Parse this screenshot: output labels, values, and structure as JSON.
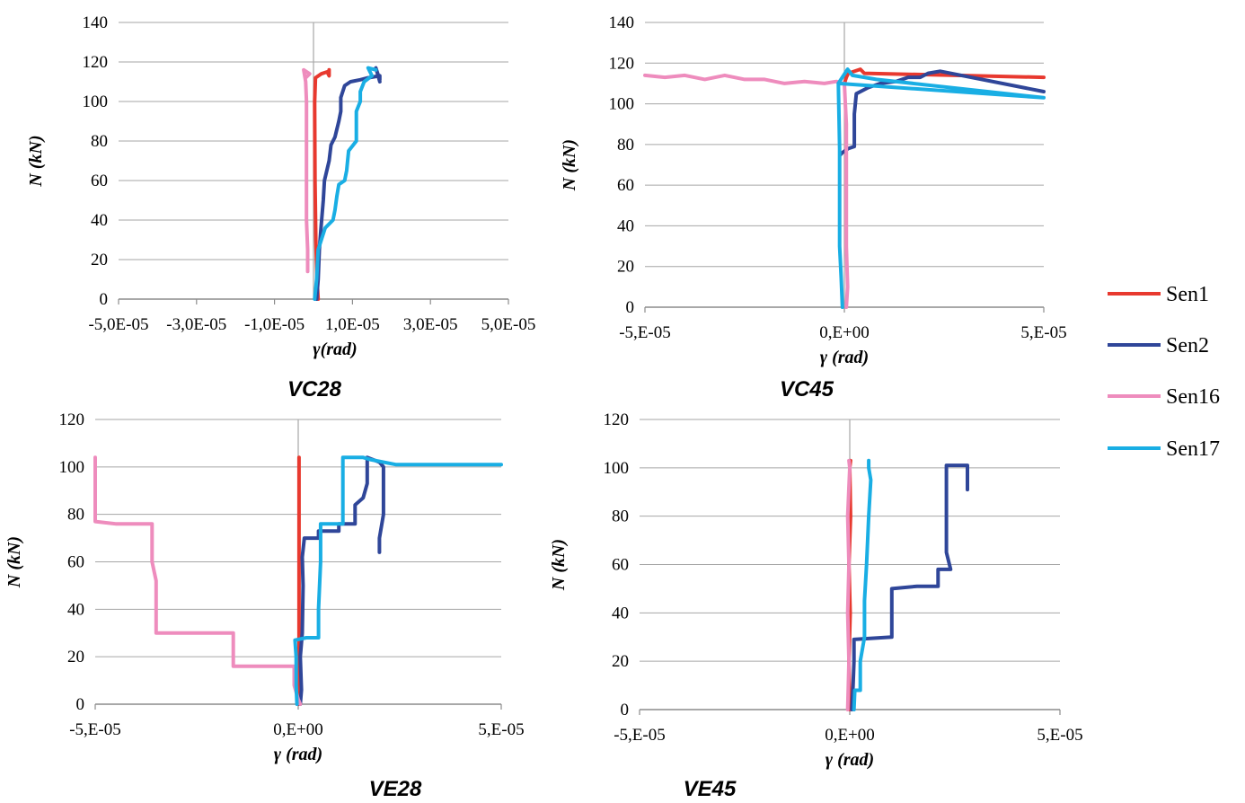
{
  "legend": {
    "placement": "right",
    "items": [
      {
        "name": "Sen1",
        "color": "#e8392f"
      },
      {
        "name": "Sen2",
        "color": "#2f4699"
      },
      {
        "name": "Sen16",
        "color": "#ee8cbd"
      },
      {
        "name": "Sen17",
        "color": "#19aee4"
      }
    ]
  },
  "chart_data": [
    {
      "type": "line",
      "title": "VC28",
      "xlabel": "γ(rad)",
      "ylabel": "N (kN)",
      "xlim": [
        -5e-05,
        5e-05
      ],
      "ylim": [
        0,
        140
      ],
      "xticks": [
        -5e-05,
        -3e-05,
        -1e-05,
        1e-05,
        3e-05,
        5e-05
      ],
      "xtick_labels": [
        "-5,0E-05",
        "-3,0E-05",
        "-1,0E-05",
        "1,0E-05",
        "3,0E-05",
        "5,0E-05"
      ],
      "yticks": [
        0,
        20,
        40,
        60,
        80,
        100,
        120,
        140
      ],
      "grid": true,
      "series": [
        {
          "name": "Sen1",
          "points": [
            [
              1.2e-06,
              0
            ],
            [
              9e-07,
              10
            ],
            [
              6e-07,
              30
            ],
            [
              4e-07,
              60
            ],
            [
              3e-07,
              100
            ],
            [
              5e-07,
              112
            ],
            [
              2e-06,
              114
            ],
            [
              3.5e-06,
              115
            ],
            [
              4e-06,
              113
            ],
            [
              4e-06,
              116
            ]
          ]
        },
        {
          "name": "Sen2",
          "points": [
            [
              8e-07,
              0
            ],
            [
              1.2e-06,
              10
            ],
            [
              1.5e-06,
              25
            ],
            [
              2e-06,
              38
            ],
            [
              2.5e-06,
              50
            ],
            [
              2.8e-06,
              60
            ],
            [
              4e-06,
              70
            ],
            [
              4.5e-06,
              78
            ],
            [
              5.5e-06,
              82
            ],
            [
              6.5e-06,
              90
            ],
            [
              7e-06,
              95
            ],
            [
              7e-06,
              102
            ],
            [
              8e-06,
              108
            ],
            [
              9.5e-06,
              110
            ],
            [
              1.2e-05,
              111
            ],
            [
              1.4e-05,
              112
            ],
            [
              1.7e-05,
              113
            ],
            [
              1.7e-05,
              111
            ],
            [
              1.6e-05,
              117
            ],
            [
              1.7e-05,
              110
            ]
          ]
        },
        {
          "name": "Sen16",
          "points": [
            [
              -1.5e-06,
              14
            ],
            [
              -1.5e-06,
              25
            ],
            [
              -1.8e-06,
              40
            ],
            [
              -1.8e-06,
              55
            ],
            [
              -1.8e-06,
              72
            ],
            [
              -1.8e-06,
              85
            ],
            [
              -1.8e-06,
              100
            ],
            [
              -2e-06,
              110
            ],
            [
              -2.5e-06,
              116
            ],
            [
              -1e-06,
              114
            ],
            [
              -2e-06,
              112
            ]
          ]
        },
        {
          "name": "Sen17",
          "points": [
            [
              3e-07,
              0
            ],
            [
              8e-07,
              10
            ],
            [
              1.2e-06,
              25
            ],
            [
              3e-06,
              36
            ],
            [
              5e-06,
              40
            ],
            [
              5.5e-06,
              45
            ],
            [
              6e-06,
              52
            ],
            [
              6.5e-06,
              58
            ],
            [
              8e-06,
              60
            ],
            [
              8.5e-06,
              65
            ],
            [
              9e-06,
              75
            ],
            [
              1.1e-05,
              80
            ],
            [
              1.1e-05,
              95
            ],
            [
              1.2e-05,
              100
            ],
            [
              1.2e-05,
              105
            ],
            [
              1.3e-05,
              110
            ],
            [
              1.5e-05,
              113
            ],
            [
              1.4e-05,
              117
            ],
            [
              1.6e-05,
              116
            ]
          ]
        }
      ]
    },
    {
      "type": "line",
      "title": "VC45",
      "xlabel": "γ (rad)",
      "ylabel": "N (kN)",
      "xlim": [
        -5e-05,
        5e-05
      ],
      "ylim": [
        0,
        140
      ],
      "xticks": [
        -5e-05,
        0,
        5e-05
      ],
      "xtick_labels": [
        "-5,E-05",
        "0,E+00",
        "5,E-05"
      ],
      "yticks": [
        0,
        20,
        40,
        60,
        80,
        100,
        120,
        140
      ],
      "grid": true,
      "series": [
        {
          "name": "Sen1",
          "points": [
            [
              0,
              110
            ],
            [
              5e-07,
              113
            ],
            [
              1e-06,
              115
            ],
            [
              4e-06,
              117
            ],
            [
              5e-06,
              115
            ],
            [
              5e-05,
              113
            ]
          ]
        },
        {
          "name": "Sen2",
          "points": [
            [
              -1e-06,
              75
            ],
            [
              -5e-07,
              76
            ],
            [
              1e-06,
              78
            ],
            [
              2.5e-06,
              79
            ],
            [
              2.5e-06,
              95
            ],
            [
              3e-06,
              105
            ],
            [
              6e-06,
              108
            ],
            [
              9e-06,
              110
            ],
            [
              1.3e-05,
              111
            ],
            [
              1.6e-05,
              113
            ],
            [
              1.9e-05,
              113
            ],
            [
              2.1e-05,
              115
            ],
            [
              2.4e-05,
              116
            ],
            [
              5e-05,
              106
            ]
          ]
        },
        {
          "name": "Sen16",
          "points": [
            [
              -5e-05,
              114
            ],
            [
              -4.5e-05,
              113
            ],
            [
              -4e-05,
              114
            ],
            [
              -3.5e-05,
              112
            ],
            [
              -3e-05,
              114
            ],
            [
              -2.5e-05,
              112
            ],
            [
              -2e-05,
              112
            ],
            [
              -1.5e-05,
              110
            ],
            [
              -1e-05,
              111
            ],
            [
              -5e-06,
              110
            ],
            [
              -2e-06,
              111
            ],
            [
              -5e-07,
              110
            ],
            [
              0,
              110
            ],
            [
              5e-07,
              90
            ],
            [
              5e-07,
              60
            ],
            [
              5e-07,
              30
            ],
            [
              8e-07,
              10
            ],
            [
              5e-07,
              0
            ]
          ]
        },
        {
          "name": "Sen17",
          "points": [
            [
              -1.5e-06,
              110
            ],
            [
              8e-07,
              117
            ],
            [
              2e-06,
              114
            ],
            [
              8e-06,
              112
            ],
            [
              5e-05,
              103
            ],
            [
              -1.5e-06,
              110
            ],
            [
              -1.2e-06,
              78
            ],
            [
              -1.2e-06,
              60
            ],
            [
              -1.2e-06,
              30
            ],
            [
              -8e-07,
              15
            ],
            [
              -5e-07,
              0
            ]
          ]
        }
      ]
    },
    {
      "type": "line",
      "title": "VE28",
      "xlabel": "γ (rad)",
      "ylabel": "N (kN)",
      "xlim": [
        -5e-05,
        5e-05
      ],
      "ylim": [
        0,
        120
      ],
      "xticks": [
        -5e-05,
        0,
        5e-05
      ],
      "xtick_labels": [
        "-5,E-05",
        "0,E+00",
        "5,E-05"
      ],
      "yticks": [
        0,
        20,
        40,
        60,
        80,
        100,
        120
      ],
      "grid": true,
      "series": [
        {
          "name": "Sen1",
          "points": [
            [
              2e-07,
              0
            ],
            [
              2e-07,
              30
            ],
            [
              2e-07,
              60
            ],
            [
              2e-07,
              80
            ],
            [
              2e-07,
              104
            ]
          ]
        },
        {
          "name": "Sen2",
          "points": [
            [
              5e-07,
              0
            ],
            [
              8e-07,
              6
            ],
            [
              5e-07,
              20
            ],
            [
              1e-06,
              30
            ],
            [
              1.2e-06,
              50
            ],
            [
              1e-06,
              62
            ],
            [
              1.5e-06,
              70
            ],
            [
              5e-06,
              70
            ],
            [
              5e-06,
              73
            ],
            [
              1e-05,
              73
            ],
            [
              1e-05,
              76
            ],
            [
              1.4e-05,
              76
            ],
            [
              1.4e-05,
              84
            ],
            [
              1.6e-05,
              87
            ],
            [
              1.7e-05,
              93
            ],
            [
              1.7e-05,
              100
            ],
            [
              1.7e-05,
              104
            ],
            [
              2e-05,
              102
            ],
            [
              2.1e-05,
              100
            ],
            [
              2.1e-05,
              80
            ],
            [
              2e-05,
              70
            ],
            [
              2e-05,
              64
            ]
          ]
        },
        {
          "name": "Sen16",
          "points": [
            [
              -5e-05,
              104
            ],
            [
              -5e-05,
              77
            ],
            [
              -4.5e-05,
              76
            ],
            [
              -3.6e-05,
              76
            ],
            [
              -3.6e-05,
              60
            ],
            [
              -3.5e-05,
              52
            ],
            [
              -3.5e-05,
              40
            ],
            [
              -3.5e-05,
              30
            ],
            [
              -3.1e-05,
              30
            ],
            [
              -1.6e-05,
              30
            ],
            [
              -1.6e-05,
              20
            ],
            [
              -1.6e-05,
              16
            ],
            [
              -1.15e-05,
              16
            ],
            [
              -1e-06,
              16
            ],
            [
              -1e-06,
              8
            ],
            [
              0,
              2
            ],
            [
              5e-07,
              0
            ]
          ]
        },
        {
          "name": "Sen17",
          "points": [
            [
              -3e-07,
              0
            ],
            [
              -5e-07,
              8
            ],
            [
              -5e-07,
              20
            ],
            [
              -8e-07,
              27
            ],
            [
              2e-06,
              28
            ],
            [
              5e-06,
              28
            ],
            [
              5e-06,
              40
            ],
            [
              5.5e-06,
              60
            ],
            [
              5.5e-06,
              76
            ],
            [
              1.1e-05,
              76
            ],
            [
              1.1e-05,
              104
            ],
            [
              1.6e-05,
              104
            ],
            [
              1.8e-05,
              103
            ],
            [
              2.4e-05,
              101
            ],
            [
              5e-05,
              101
            ]
          ]
        }
      ]
    },
    {
      "type": "line",
      "title": "VE45",
      "xlabel": "γ (rad)",
      "ylabel": "N (kN)",
      "xlim": [
        -5e-05,
        5e-05
      ],
      "ylim": [
        0,
        120
      ],
      "xticks": [
        -5e-05,
        0,
        5e-05
      ],
      "xtick_labels": [
        "-5,E-05",
        "0,E+00",
        "5,E-05"
      ],
      "yticks": [
        0,
        20,
        40,
        60,
        80,
        100,
        120
      ],
      "grid": true,
      "series": [
        {
          "name": "Sen1",
          "points": [
            [
              0,
              0
            ],
            [
              -2e-07,
              20
            ],
            [
              1e-07,
              40
            ],
            [
              -2e-07,
              60
            ],
            [
              2e-07,
              80
            ],
            [
              0,
              100
            ],
            [
              2e-07,
              103
            ]
          ]
        },
        {
          "name": "Sen2",
          "points": [
            [
              5e-07,
              0
            ],
            [
              8e-07,
              10
            ],
            [
              1e-06,
              20
            ],
            [
              1e-06,
              29
            ],
            [
              1e-05,
              30
            ],
            [
              1e-05,
              50
            ],
            [
              1.6e-05,
              51
            ],
            [
              2.1e-05,
              51
            ],
            [
              2.1e-05,
              58
            ],
            [
              2.4e-05,
              58
            ],
            [
              2.3e-05,
              65
            ],
            [
              2.3e-05,
              75
            ],
            [
              2.3e-05,
              85
            ],
            [
              2.3e-05,
              95
            ],
            [
              2.3e-05,
              101
            ],
            [
              2.8e-05,
              101
            ],
            [
              2.8e-05,
              91
            ]
          ]
        },
        {
          "name": "Sen16",
          "points": [
            [
              -5e-07,
              0
            ],
            [
              -2e-07,
              20
            ],
            [
              -5e-07,
              40
            ],
            [
              -2e-07,
              60
            ],
            [
              -5e-07,
              80
            ],
            [
              0,
              100
            ],
            [
              -2e-07,
              103
            ]
          ]
        },
        {
          "name": "Sen17",
          "points": [
            [
              1e-06,
              0
            ],
            [
              1.2e-06,
              8
            ],
            [
              2.5e-06,
              8
            ],
            [
              2.5e-06,
              20
            ],
            [
              3.5e-06,
              30
            ],
            [
              3.5e-06,
              45
            ],
            [
              4e-06,
              60
            ],
            [
              4.5e-06,
              80
            ],
            [
              5e-06,
              95
            ],
            [
              4.5e-06,
              100
            ],
            [
              4.5e-06,
              103
            ]
          ]
        }
      ]
    }
  ]
}
